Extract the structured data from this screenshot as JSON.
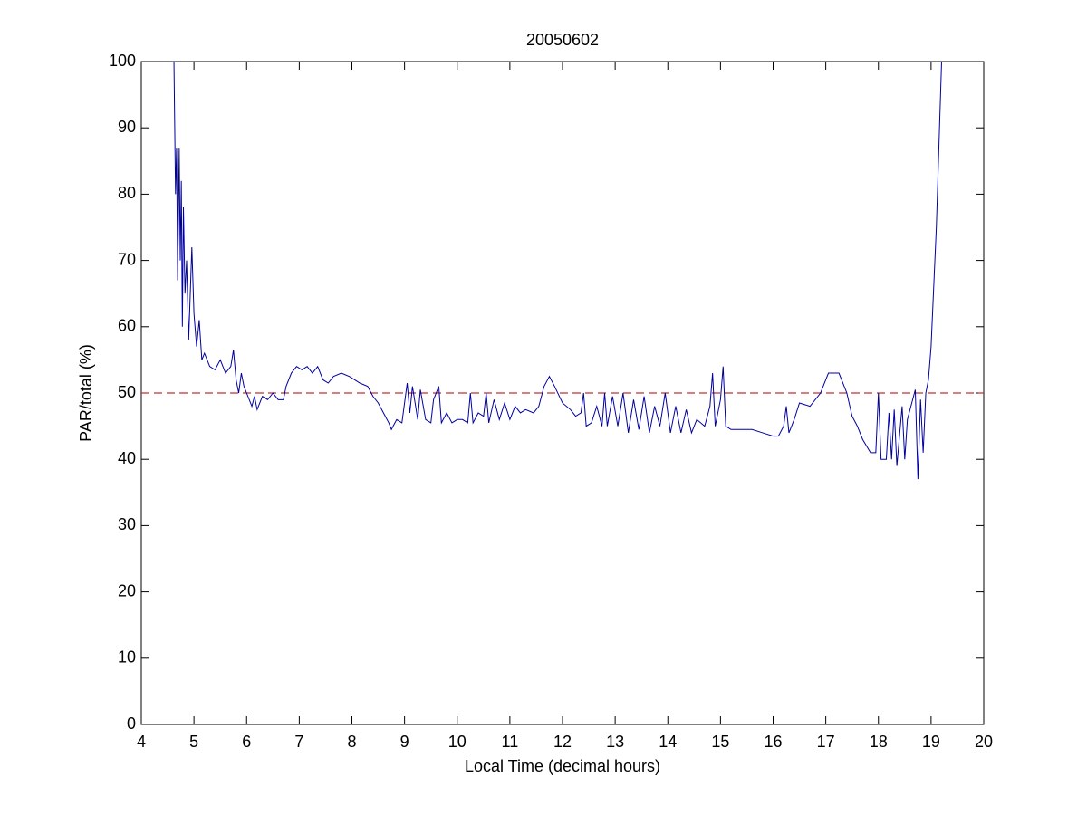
{
  "chart_data": {
    "type": "line",
    "title": "20050602",
    "xlabel": "Local Time (decimal hours)",
    "ylabel": "PAR/total (%)",
    "color": "#0000a0",
    "x": [
      4.62,
      4.65,
      4.67,
      4.69,
      4.72,
      4.74,
      4.76,
      4.78,
      4.8,
      4.83,
      4.86,
      4.9,
      4.93,
      4.96,
      5.0,
      5.05,
      5.1,
      5.15,
      5.2,
      5.3,
      5.4,
      5.5,
      5.6,
      5.7,
      5.75,
      5.8,
      5.85,
      5.9,
      5.95,
      6.0,
      6.1,
      6.15,
      6.2,
      6.3,
      6.4,
      6.5,
      6.6,
      6.7,
      6.75,
      6.85,
      6.95,
      7.05,
      7.15,
      7.25,
      7.35,
      7.45,
      7.55,
      7.65,
      7.8,
      7.95,
      8.05,
      8.15,
      8.3,
      8.4,
      8.5,
      8.6,
      8.7,
      8.75,
      8.85,
      8.95,
      9.05,
      9.1,
      9.15,
      9.25,
      9.3,
      9.4,
      9.5,
      9.55,
      9.65,
      9.7,
      9.8,
      9.9,
      10.0,
      10.1,
      10.2,
      10.25,
      10.3,
      10.4,
      10.5,
      10.55,
      10.6,
      10.7,
      10.8,
      10.9,
      11.0,
      11.1,
      11.2,
      11.3,
      11.45,
      11.55,
      11.65,
      11.75,
      11.85,
      12.0,
      12.15,
      12.25,
      12.35,
      12.4,
      12.45,
      12.55,
      12.65,
      12.75,
      12.8,
      12.85,
      12.95,
      13.05,
      13.15,
      13.25,
      13.35,
      13.45,
      13.55,
      13.65,
      13.75,
      13.85,
      13.95,
      14.05,
      14.15,
      14.25,
      14.35,
      14.45,
      14.55,
      14.7,
      14.8,
      14.85,
      14.9,
      15.0,
      15.05,
      15.1,
      15.2,
      15.4,
      15.6,
      15.8,
      16.0,
      16.1,
      16.2,
      16.25,
      16.3,
      16.4,
      16.5,
      16.7,
      16.9,
      17.05,
      17.25,
      17.4,
      17.5,
      17.6,
      17.7,
      17.85,
      17.95,
      18.0,
      18.05,
      18.15,
      18.2,
      18.25,
      18.3,
      18.35,
      18.45,
      18.5,
      18.55,
      18.65,
      18.7,
      18.75,
      18.8,
      18.85,
      18.9,
      18.95,
      19.0,
      19.1,
      19.2
    ],
    "values": [
      100,
      80,
      87,
      67,
      87,
      70,
      82,
      60,
      78,
      65,
      70,
      58,
      65,
      72,
      62,
      57,
      61,
      55,
      56,
      54,
      53.5,
      55,
      53,
      54,
      56.5,
      52,
      50,
      53,
      51,
      50,
      48,
      49.5,
      47.5,
      49.5,
      49,
      50,
      49,
      49,
      51,
      53,
      54,
      53.5,
      54,
      53,
      54,
      52,
      51.5,
      52.5,
      53,
      52.5,
      52,
      51.5,
      51,
      49.5,
      48.5,
      47,
      45.5,
      44.5,
      46,
      45.5,
      51.5,
      47,
      51,
      46,
      50.5,
      46,
      45.5,
      49,
      51,
      45.5,
      47,
      45.5,
      46,
      46,
      45.5,
      50,
      45.5,
      47,
      46.5,
      50,
      45.5,
      49,
      46,
      48.5,
      46,
      48,
      47,
      47.5,
      47,
      48,
      51,
      52.5,
      51,
      48.5,
      47.5,
      46.5,
      47,
      50,
      45,
      45.5,
      48,
      45,
      50,
      45,
      49.5,
      45,
      50,
      44,
      49,
      44.5,
      49.5,
      44,
      48,
      45,
      50,
      44,
      48,
      44,
      47.5,
      44,
      46,
      45,
      48,
      53,
      45,
      49,
      54,
      45,
      44.5,
      44.5,
      44.5,
      44,
      43.5,
      43.5,
      45,
      48,
      44,
      46,
      48.5,
      48,
      50,
      53,
      53,
      50,
      46.5,
      45,
      43,
      41,
      41,
      50,
      40,
      40,
      47,
      40,
      47.5,
      39,
      48,
      40,
      46,
      49,
      50.5,
      37,
      49,
      41,
      50,
      52,
      57,
      75,
      100
    ],
    "reference_line": {
      "value": 50,
      "color": "#c03030"
    },
    "xlim": [
      4,
      20
    ],
    "xticks": [
      4,
      5,
      6,
      7,
      8,
      9,
      10,
      11,
      12,
      13,
      14,
      15,
      16,
      17,
      18,
      19,
      20
    ],
    "ylim": [
      0,
      100
    ],
    "yticks": [
      0,
      10,
      20,
      30,
      40,
      50,
      60,
      70,
      80,
      90,
      100
    ]
  }
}
